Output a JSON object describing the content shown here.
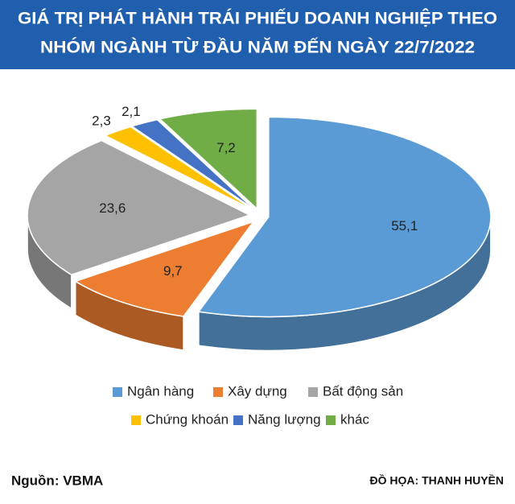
{
  "chart_data": {
    "type": "pie3d",
    "title": [
      "GIÁ TRỊ PHÁT HÀNH TRÁI PHIẾU DOANH NGHIỆP THEO",
      "NHÓM NGÀNH TỪ ĐẦU NĂM ĐẾN NGÀY 22/7/2022"
    ],
    "categories": [
      "Ngân hàng",
      "Xây dựng",
      "Bất động sản",
      "Chứng khoán",
      "Năng lượng",
      "khác"
    ],
    "values": [
      55.1,
      9.7,
      23.6,
      2.3,
      2.1,
      7.2
    ],
    "value_labels": [
      "55,1",
      "9,7",
      "23,6",
      "2,3",
      "2,1",
      "7,2"
    ],
    "colors": [
      "#5b9bd5",
      "#ed7d31",
      "#a5a5a5",
      "#ffc000",
      "#4472c4",
      "#70ad47"
    ],
    "legend": "bottom",
    "source": "Nguồn:  VBMA",
    "credit": "ĐỒ HỌA: THANH HUYỀN"
  }
}
